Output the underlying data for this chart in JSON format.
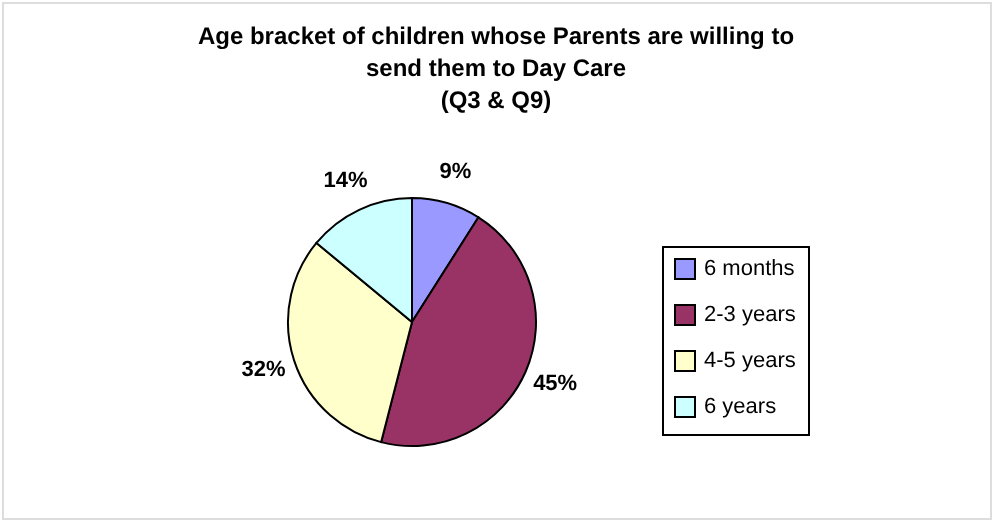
{
  "chart_data": {
    "type": "pie",
    "title": "Age bracket of children whose Parents are willing to send them to Day Care",
    "subtitle": "(Q3 & Q9)",
    "categories": [
      "6 months",
      "2-3 years",
      "4-5 years",
      "6 years"
    ],
    "values": [
      9,
      45,
      32,
      14
    ],
    "value_labels": [
      "9%",
      "45%",
      "32%",
      "14%"
    ],
    "colors": [
      "#9999ff",
      "#993366",
      "#ffffcc",
      "#ccffff"
    ],
    "legend": "right"
  }
}
